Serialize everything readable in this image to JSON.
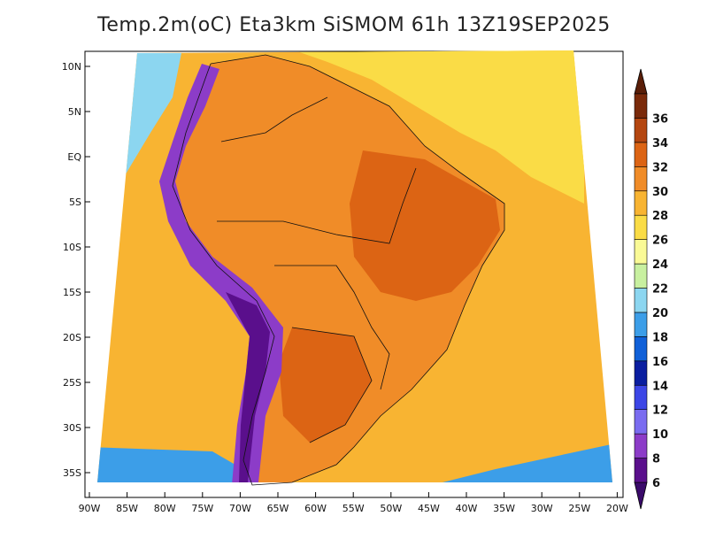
{
  "title": "Temp.2m(oC) Eta3km SiSMOM 61h 13Z19SEP2025",
  "lat_ticks": [
    "10N",
    "5N",
    "EQ",
    "5S",
    "10S",
    "15S",
    "20S",
    "25S",
    "30S",
    "35S"
  ],
  "lon_ticks": [
    "90W",
    "85W",
    "80W",
    "75W",
    "70W",
    "65W",
    "60W",
    "55W",
    "50W",
    "45W",
    "40W",
    "35W",
    "30W",
    "25W",
    "20W"
  ],
  "colorbar": {
    "labels": [
      "6",
      "8",
      "10",
      "12",
      "14",
      "16",
      "18",
      "20",
      "22",
      "24",
      "26",
      "28",
      "30",
      "32",
      "34",
      "36"
    ],
    "colors": [
      "#5a0f8c",
      "#8c3cc8",
      "#7a6cf0",
      "#3c46e6",
      "#0a1ea0",
      "#1060d8",
      "#3c9ee8",
      "#8cd6f0",
      "#c8f0a0",
      "#fafa96",
      "#fadc46",
      "#f8b432",
      "#f08c28",
      "#dc6414",
      "#b44610",
      "#7a2a0a"
    ],
    "min_arrow_color": "#3a0a6a",
    "max_arrow_color": "#5a1e08"
  },
  "field_colors": {
    "ocean_warm": "#f8b432",
    "ocean_north": "#fadc46",
    "ocean_pacific_south": "#f8c040",
    "land_hot": "#f08c28",
    "land_hotter": "#dc6414",
    "andes": "#8c3cc8",
    "andes_core": "#5a0f8c",
    "cool": "#8cd6f0",
    "south_cold": "#3c9ee8"
  }
}
